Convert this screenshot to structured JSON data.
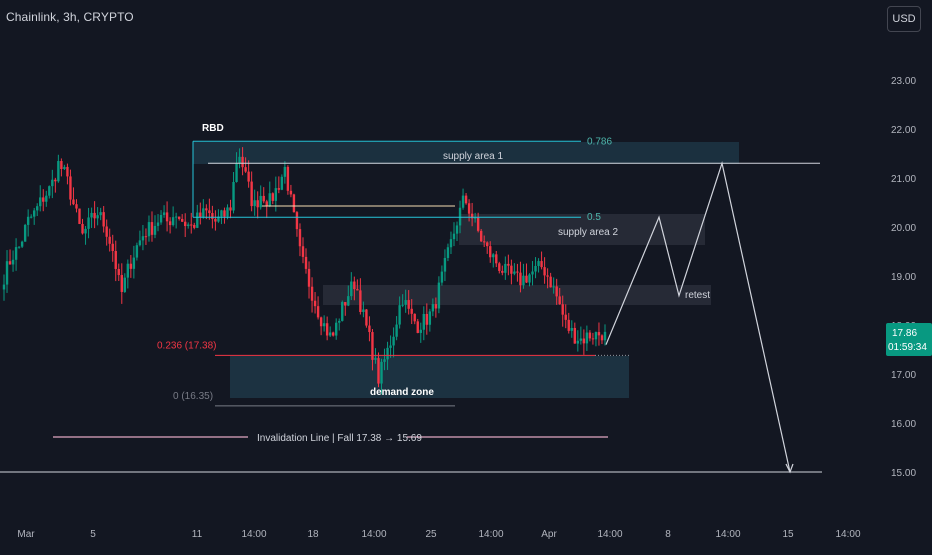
{
  "header": {
    "title": "Chainlink, 3h, CRYPTO",
    "currency_button": "USD"
  },
  "price_tag": {
    "price": "17.86",
    "countdown": "01:59:34",
    "color": "#089981"
  },
  "colors": {
    "up": "#089981",
    "down": "#f23645",
    "background": "#131722",
    "zone": "#1f3a4a",
    "zone_gray": "#2a2e39",
    "fib_line": "#26c6da",
    "fib_label": "#4db6ac"
  },
  "chart_data": {
    "type": "candlestick",
    "symbol": "Chainlink",
    "timeframe": "3h",
    "exchange": "CRYPTO",
    "currency": "USD",
    "ylim": [
      14.35,
      24.4
    ],
    "y_ticks": [
      "15.00",
      "16.00",
      "17.00",
      "18.00",
      "19.00",
      "20.00",
      "21.00",
      "22.00",
      "23.00"
    ],
    "x_ticks": [
      "Mar",
      "5",
      "11",
      "14:00",
      "18",
      "14:00",
      "25",
      "14:00",
      "Apr",
      "14:00",
      "8",
      "14:00",
      "15",
      "14:00"
    ],
    "approx_price_path": [
      19.0,
      19.4,
      19.6,
      20.1,
      20.3,
      20.6,
      20.8,
      21.3,
      21.0,
      20.4,
      19.8,
      20.1,
      20.3,
      20.0,
      19.5,
      18.6,
      19.2,
      19.6,
      19.9,
      20.0,
      20.2,
      20.1,
      20.3,
      20.1,
      20.0,
      20.2,
      20.3,
      20.1,
      20.2,
      20.4,
      21.6,
      21.0,
      20.4,
      20.7,
      20.5,
      20.8,
      21.2,
      20.3,
      19.4,
      18.9,
      18.4,
      18.0,
      17.7,
      18.2,
      18.6,
      18.9,
      18.2,
      17.6,
      16.9,
      17.4,
      17.9,
      18.6,
      18.2,
      18.0,
      18.1,
      18.3,
      18.9,
      19.5,
      20.1,
      20.6,
      20.2,
      19.8,
      19.5,
      19.3,
      19.1,
      19.0,
      18.9,
      19.0,
      19.1,
      19.2,
      18.9,
      18.5,
      18.0,
      17.8,
      17.7,
      17.8,
      17.8,
      17.86
    ],
    "annotations": {
      "fib_0786": "0.786",
      "fib_05": "0.5",
      "fib_0236": "0.236 (17.38)",
      "fib_0": "0 (16.35)",
      "rbd": "RBD",
      "supply_area_1": "supply area 1",
      "supply_area_2": "supply area 2",
      "demand_zone": "demand zone",
      "retest": "retest",
      "invalidation": "Invalidation Line | Fall 17.38 → 15.69"
    },
    "levels": {
      "fib_0786": 21.75,
      "fib_05": 20.2,
      "fib_0236": 17.38,
      "fib_0": 16.35,
      "supply_area_1_line": 21.3,
      "target_line": 15.0,
      "invalidation_line": 15.69
    },
    "projection_path": [
      17.6,
      20.2,
      18.6,
      21.3,
      15.0
    ],
    "grid": false,
    "legend": "none"
  }
}
